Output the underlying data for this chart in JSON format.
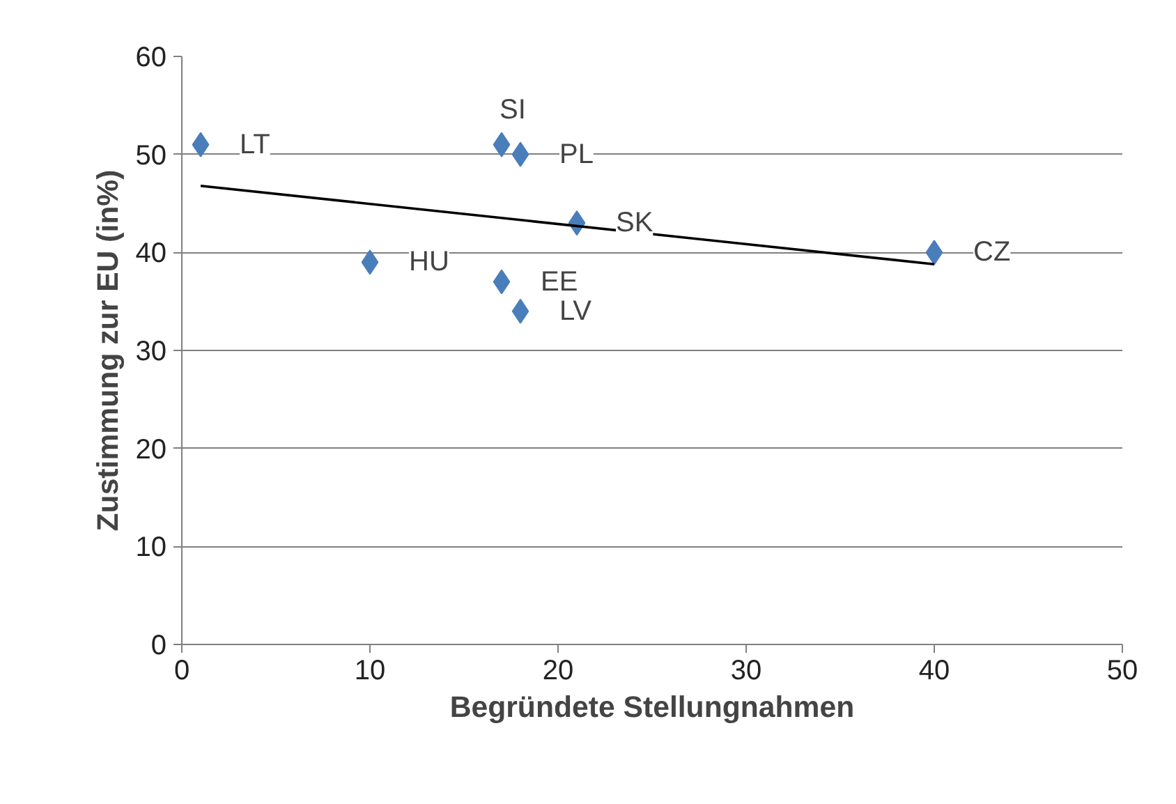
{
  "chart_data": {
    "type": "scatter",
    "xlabel": "Begründete Stellungnahmen",
    "ylabel": "Zustimmung zur EU (in%)",
    "series": [
      {
        "color": "#4a7ebb",
        "x": [
          1,
          17,
          18,
          21,
          40,
          10,
          17,
          18
        ],
        "values": [
          51,
          51,
          50,
          43,
          40,
          39,
          37,
          34
        ],
        "marker": "diamond"
      },
      {
        "type": "line",
        "color": "#000000",
        "x": [
          1,
          40
        ],
        "values": [
          46.8,
          38.8
        ],
        "marker": "none"
      }
    ],
    "annotations": [
      {
        "text": "LT",
        "x": 1,
        "y": 51
      },
      {
        "text": "SI",
        "x": 17,
        "y": 51
      },
      {
        "text": "PL",
        "x": 18,
        "y": 50
      },
      {
        "text": "SK",
        "x": 21,
        "y": 43
      },
      {
        "text": "CZ",
        "x": 40,
        "y": 40
      },
      {
        "text": "HU",
        "x": 10,
        "y": 39
      },
      {
        "text": "EE",
        "x": 17,
        "y": 37
      },
      {
        "text": "LV",
        "x": 18,
        "y": 34
      }
    ],
    "xlim": [
      0,
      50
    ],
    "ylim": [
      0,
      60
    ],
    "xticks": [
      0,
      10,
      20,
      30,
      40,
      50
    ],
    "yticks": [
      0,
      10,
      20,
      30,
      40,
      50,
      60
    ],
    "grid": "y"
  }
}
